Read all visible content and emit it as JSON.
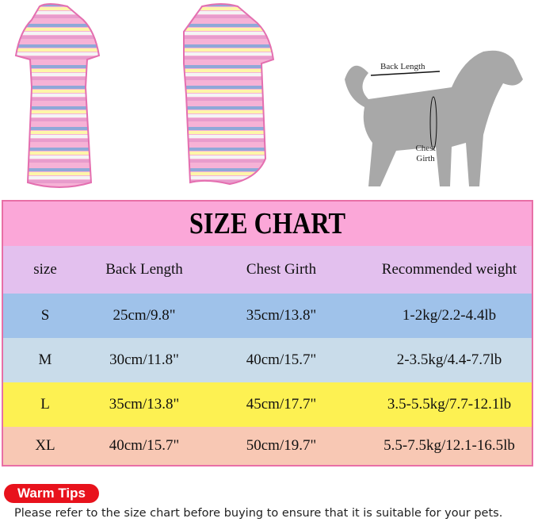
{
  "images": {
    "front_shirt": "striped-shirt-front",
    "back_shirt": "striped-shirt-back",
    "dog_diagram": {
      "back_label": "Back Length",
      "chest_label": "Chest Girth"
    }
  },
  "size_chart": {
    "title": "SIZE CHART",
    "headers": [
      "size",
      "Back Length",
      "Chest Girth",
      "Recommended weight"
    ],
    "rows": [
      {
        "size": "S",
        "back": "25cm/9.8\"",
        "chest": "35cm/13.8\"",
        "weight": "1-2kg/2.2-4.4lb",
        "color": "#9fc2ea"
      },
      {
        "size": "M",
        "back": "30cm/11.8\"",
        "chest": "40cm/15.7\"",
        "weight": "2-3.5kg/4.4-7.7lb",
        "color": "#c9dcea"
      },
      {
        "size": "L",
        "back": "35cm/13.8\"",
        "chest": "45cm/17.7\"",
        "weight": "3.5-5.5kg/7.7-12.1lb",
        "color": "#fdf152"
      },
      {
        "size": "XL",
        "back": "40cm/15.7\"",
        "chest": "50cm/19.7\"",
        "weight": "5.5-7.5kg/12.1-16.5lb",
        "color": "#f8c8b4"
      }
    ],
    "title_color": "#fba7d8",
    "header_color": "#e3c0ee",
    "border_color": "#e86fa6"
  },
  "tips": {
    "badge": "Warm Tips",
    "text": "Please refer to the size chart before buying to ensure that it is suitable for your pets."
  }
}
